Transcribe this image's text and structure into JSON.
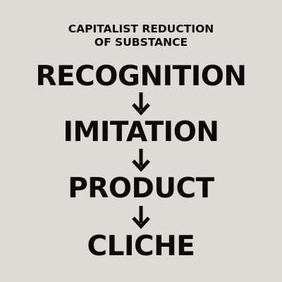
{
  "subtitle": "CAPITALIST REDUCTION\nOF SUBSTANCE",
  "steps": [
    {
      "label": "RECOGNITION"
    },
    {
      "label": "IMITATION"
    },
    {
      "label": "PRODUCT"
    },
    {
      "label": "CLICHE"
    }
  ],
  "arrow_icon": "arrow-down-icon",
  "colors": {
    "background": "#dddbd5",
    "text": "#0b0b0b"
  }
}
